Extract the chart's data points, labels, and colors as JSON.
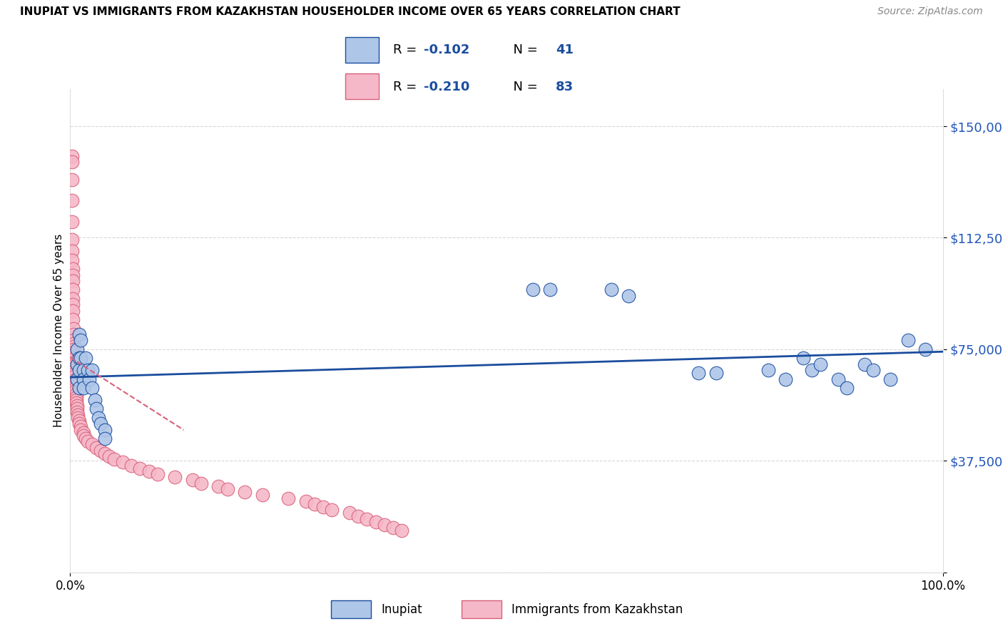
{
  "title": "INUPIAT VS IMMIGRANTS FROM KAZAKHSTAN HOUSEHOLDER INCOME OVER 65 YEARS CORRELATION CHART",
  "source": "Source: ZipAtlas.com",
  "ylabel": "Householder Income Over 65 years",
  "legend_r_inupiat": "R = -0.102",
  "legend_n_inupiat": "N = 41",
  "legend_r_kazakhstan": "R = -0.210",
  "legend_n_kazakhstan": "N = 83",
  "legend_label_inupiat": "Inupiat",
  "legend_label_kazakhstan": "Immigrants from Kazakhstan",
  "xlim": [
    0.0,
    1.0
  ],
  "ylim": [
    0,
    162500
  ],
  "yticks": [
    0,
    37500,
    75000,
    112500,
    150000
  ],
  "ytick_labels": [
    "",
    "$37,500",
    "$75,000",
    "$112,500",
    "$150,000"
  ],
  "xtick_positions": [
    0.0,
    1.0
  ],
  "xtick_labels": [
    "0.0%",
    "100.0%"
  ],
  "inupiat_color": "#aec6e8",
  "kazakhstan_color": "#f5b8c8",
  "trend_inupiat_color": "#1a4d9e",
  "trend_kazakhstan_color": "#d9607a",
  "ytick_color": "#2255bb",
  "background_color": "#ffffff",
  "grid_color": "#d8d8d8",
  "inupiat_x": [
    0.008,
    0.008,
    0.008,
    0.01,
    0.01,
    0.01,
    0.01,
    0.012,
    0.012,
    0.015,
    0.015,
    0.015,
    0.018,
    0.02,
    0.022,
    0.025,
    0.025,
    0.028,
    0.03,
    0.032,
    0.035,
    0.04,
    0.04,
    0.53,
    0.55,
    0.62,
    0.64,
    0.72,
    0.74,
    0.8,
    0.82,
    0.84,
    0.85,
    0.86,
    0.88,
    0.89,
    0.91,
    0.92,
    0.94,
    0.96,
    0.98
  ],
  "inupiat_y": [
    75000,
    70000,
    65000,
    80000,
    72000,
    68000,
    62000,
    78000,
    72000,
    68000,
    65000,
    62000,
    72000,
    68000,
    65000,
    68000,
    62000,
    58000,
    55000,
    52000,
    50000,
    48000,
    45000,
    95000,
    95000,
    95000,
    93000,
    67000,
    67000,
    68000,
    65000,
    72000,
    68000,
    70000,
    65000,
    62000,
    70000,
    68000,
    65000,
    78000,
    75000
  ],
  "kazakhstan_x": [
    0.002,
    0.002,
    0.002,
    0.002,
    0.002,
    0.002,
    0.002,
    0.002,
    0.003,
    0.003,
    0.003,
    0.003,
    0.003,
    0.003,
    0.003,
    0.003,
    0.004,
    0.004,
    0.004,
    0.004,
    0.004,
    0.004,
    0.004,
    0.004,
    0.005,
    0.005,
    0.005,
    0.005,
    0.005,
    0.005,
    0.005,
    0.006,
    0.006,
    0.006,
    0.006,
    0.006,
    0.007,
    0.007,
    0.007,
    0.007,
    0.008,
    0.008,
    0.008,
    0.009,
    0.009,
    0.01,
    0.01,
    0.012,
    0.012,
    0.015,
    0.015,
    0.018,
    0.02,
    0.025,
    0.03,
    0.035,
    0.04,
    0.045,
    0.05,
    0.06,
    0.07,
    0.08,
    0.09,
    0.1,
    0.12,
    0.14,
    0.15,
    0.17,
    0.18,
    0.2,
    0.22,
    0.25,
    0.27,
    0.28,
    0.29,
    0.3,
    0.32,
    0.33,
    0.34,
    0.35,
    0.36,
    0.37,
    0.38
  ],
  "kazakhstan_y": [
    140000,
    138000,
    132000,
    125000,
    118000,
    112000,
    108000,
    105000,
    102000,
    100000,
    98000,
    95000,
    92000,
    90000,
    88000,
    85000,
    82000,
    80000,
    78000,
    77000,
    76000,
    75000,
    74000,
    73000,
    72000,
    71000,
    70000,
    69000,
    68000,
    67000,
    66000,
    65000,
    64000,
    63000,
    62000,
    61000,
    60000,
    59000,
    58000,
    57000,
    56000,
    55000,
    54000,
    53000,
    52000,
    51000,
    50000,
    49000,
    48000,
    47000,
    46000,
    45000,
    44000,
    43000,
    42000,
    41000,
    40000,
    39000,
    38000,
    37000,
    36000,
    35000,
    34000,
    33000,
    32000,
    31000,
    30000,
    29000,
    28000,
    27000,
    26000,
    25000,
    24000,
    23000,
    22000,
    21000,
    20000,
    19000,
    18000,
    17000,
    16000,
    15000,
    14000
  ]
}
